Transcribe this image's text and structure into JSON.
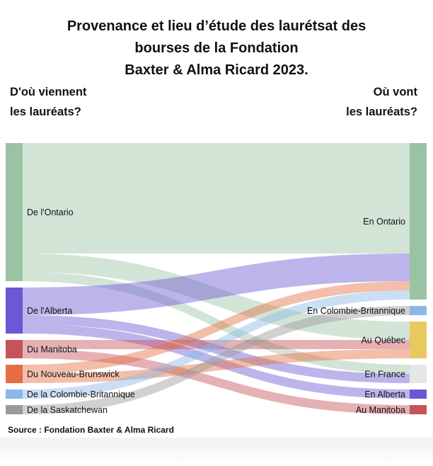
{
  "title": {
    "line1": "Provenance et lieu d’étude des laurétsat des",
    "line2": "bourses de la Fondation",
    "line3": "Baxter & Alma Ricard 2023."
  },
  "left_heading": {
    "line1": "D'où viennent",
    "line2": "les lauréats?"
  },
  "right_heading": {
    "line1": "Où vont",
    "line2": "les lauréats?"
  },
  "sources": [
    {
      "id": "on",
      "label": "De l'Ontario",
      "color": "#9bc3a3"
    },
    {
      "id": "ab",
      "label": "De l'Alberta",
      "color": "#6c58d4"
    },
    {
      "id": "mb",
      "label": "Du Manitoba",
      "color": "#c65358"
    },
    {
      "id": "nb",
      "label": "Du Nouveau-Brunswick",
      "color": "#e56e43"
    },
    {
      "id": "bc",
      "label": "De la Colombie-Britannique",
      "color": "#8cb8e6"
    },
    {
      "id": "sk",
      "label": "De la Saskatchewan",
      "color": "#9a9a9a"
    }
  ],
  "targets": [
    {
      "id": "on",
      "label": "En Ontario",
      "color": "#9bc3a3"
    },
    {
      "id": "bc",
      "label": "En Colombie-Britannique",
      "color": "#8cb8e6"
    },
    {
      "id": "qc",
      "label": "Au Québec",
      "color": "#e7c95f"
    },
    {
      "id": "fr",
      "label": "En France",
      "color": "#e6e6e6"
    },
    {
      "id": "ab",
      "label": "En Alberta",
      "color": "#6c58d4"
    },
    {
      "id": "mb",
      "label": "Au Manitoba",
      "color": "#c65358"
    }
  ],
  "links": [
    {
      "source": "on",
      "target": "on",
      "value": 12
    },
    {
      "source": "on",
      "target": "qc",
      "value": 2
    },
    {
      "source": "on",
      "target": "fr",
      "value": 1
    },
    {
      "source": "ab",
      "target": "on",
      "value": 3
    },
    {
      "source": "ab",
      "target": "ab",
      "value": 1
    },
    {
      "source": "ab",
      "target": "fr",
      "value": 1
    },
    {
      "source": "mb",
      "target": "qc",
      "value": 1
    },
    {
      "source": "mb",
      "target": "mb",
      "value": 1
    },
    {
      "source": "nb",
      "target": "on",
      "value": 1
    },
    {
      "source": "nb",
      "target": "qc",
      "value": 1
    },
    {
      "source": "bc",
      "target": "on",
      "value": 1
    },
    {
      "source": "sk",
      "target": "bc",
      "value": 1
    }
  ],
  "source_note": "Source : Fondation Baxter & Alma Ricard"
}
